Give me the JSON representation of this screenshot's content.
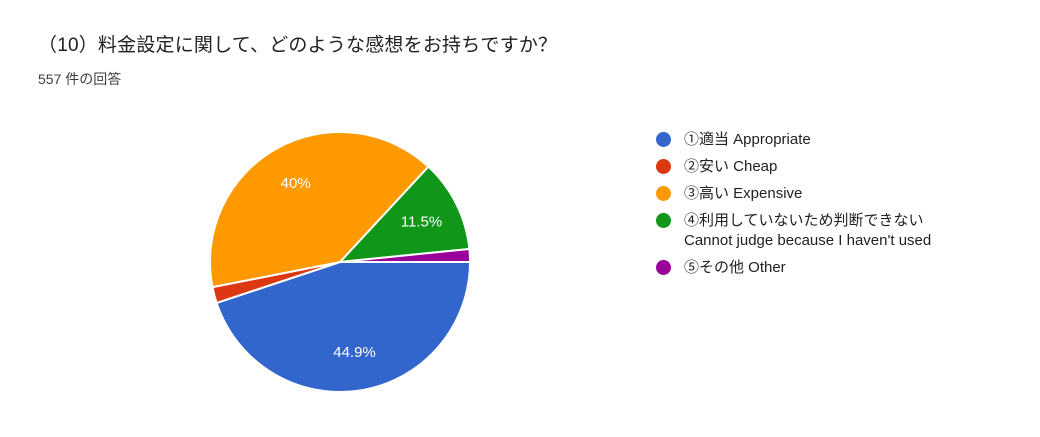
{
  "header": {
    "title": "（10）料金設定に関して、どのような感想をお持ちですか？",
    "response_count": "557 件の回答"
  },
  "chart_data": {
    "type": "pie",
    "title": "（10）料金設定に関して、どのような感想をお持ちですか？",
    "subtitle": "557 件の回答",
    "total_responses": 557,
    "legend_position": "right",
    "start_angle_deg_from_east_clockwise": 0,
    "slice_label_color": "#ffffff",
    "slice_separator_color": "#ffffff",
    "slices": [
      {
        "legend": "①適当 Appropriate",
        "legend_line2": "",
        "value_pct": 44.9,
        "label": "44.9%",
        "color": "#3366CC"
      },
      {
        "legend": "②安い Cheap",
        "legend_line2": "",
        "value_pct": 2.0,
        "label": "",
        "color": "#DC3912"
      },
      {
        "legend": "③高い Expensive",
        "legend_line2": "",
        "value_pct": 40.0,
        "label": "40%",
        "color": "#FF9900"
      },
      {
        "legend": "④利用していないため判断できない",
        "legend_line2": "Cannot judge because I haven't used",
        "value_pct": 11.5,
        "label": "11.5%",
        "color": "#109618"
      },
      {
        "legend": "⑤その他 Other",
        "legend_line2": "",
        "value_pct": 1.6,
        "label": "",
        "color": "#990099"
      }
    ]
  }
}
